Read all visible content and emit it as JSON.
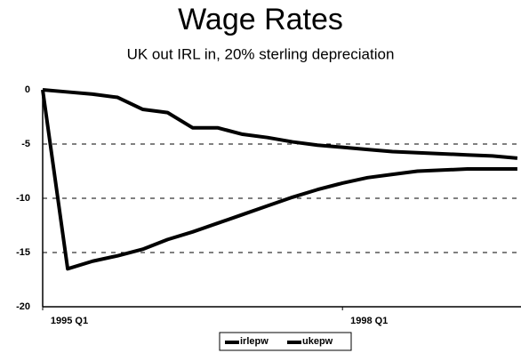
{
  "chart_data": {
    "type": "line",
    "title": "Wage Rates",
    "subtitle": "UK out IRL in, 20% sterling depreciation",
    "categories": [
      "1995 Q1",
      null,
      null,
      null,
      null,
      null,
      null,
      null,
      null,
      null,
      null,
      null,
      "1998 Q1",
      null,
      null,
      null,
      null,
      null,
      null,
      null
    ],
    "series": [
      {
        "name": "irlepw",
        "color": "#000000",
        "values": [
          0,
          -0.2,
          -0.4,
          -0.7,
          -1.8,
          -2.1,
          -3.5,
          -3.5,
          -4.1,
          -4.4,
          -4.8,
          -5.1,
          -5.3,
          -5.5,
          -5.7,
          -5.8,
          -5.9,
          -6.0,
          -6.1,
          -6.3
        ]
      },
      {
        "name": "ukepw",
        "color": "#000000",
        "values": [
          0,
          -16.5,
          -15.8,
          -15.3,
          -14.7,
          -13.8,
          -13.1,
          -12.3,
          -11.5,
          -10.7,
          -9.9,
          -9.2,
          -8.6,
          -8.1,
          -7.8,
          -7.5,
          -7.4,
          -7.3,
          -7.3,
          -7.3
        ]
      }
    ],
    "ylim": [
      -20,
      0
    ],
    "yticks": [
      0,
      -5,
      -10,
      -15,
      -20
    ],
    "grid": true,
    "legend": "bottom"
  }
}
